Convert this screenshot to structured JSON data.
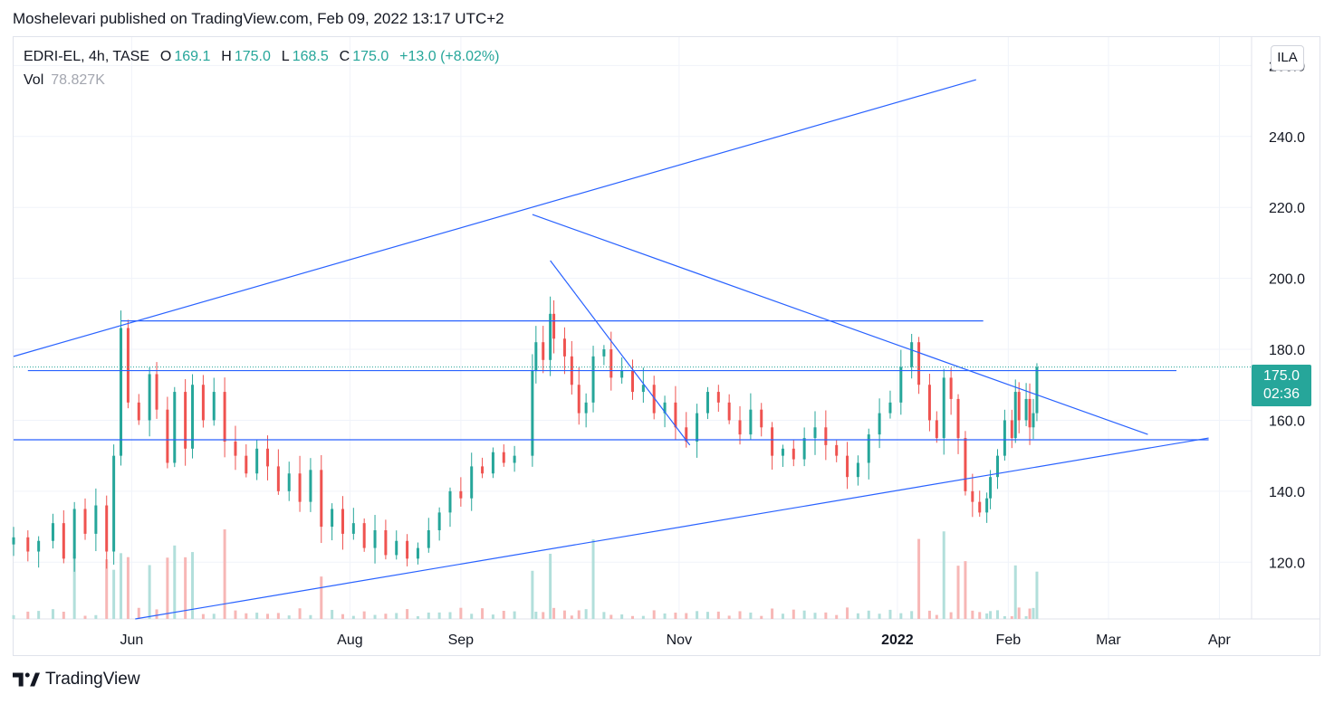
{
  "header": {
    "publish_line": "Moshelevari published on TradingView.com, Feb 09, 2022 13:17 UTC+2"
  },
  "legend": {
    "symbol": "EDRI-EL, 4h, TASE",
    "o_label": "O",
    "o_value": "169.1",
    "h_label": "H",
    "h_value": "175.0",
    "l_label": "L",
    "l_value": "168.5",
    "c_label": "C",
    "c_value": "175.0",
    "change": "+13.0 (+8.02%)",
    "vol_label": "Vol",
    "vol_value": "78.827K"
  },
  "currency_button": "ILA",
  "price_tag": {
    "price": "175.0",
    "countdown": "02:36"
  },
  "footer": {
    "brand": "TradingView",
    "logo_icon": "tradingview-logo-icon"
  },
  "colors": {
    "up": "#26a69a",
    "down": "#ef5350",
    "drawing": "#2962ff",
    "vol_up": "#b2dfdb",
    "vol_down": "#f7b7b6"
  },
  "chart_data": {
    "type": "candlestick",
    "symbol": "EDRI-EL",
    "interval": "4h",
    "exchange": "TASE",
    "y_axis": {
      "side": "right",
      "ticks": [
        120,
        140,
        160,
        180,
        200,
        220,
        240,
        260
      ],
      "labels": [
        "120.0",
        "140.0",
        "160.0",
        "180.0",
        "200.0",
        "220.0",
        "240.0",
        "260.0"
      ],
      "ylim": [
        104,
        268
      ]
    },
    "x_axis": {
      "labels": [
        "Jun",
        "Aug",
        "Sep",
        "Nov",
        "2022",
        "Feb",
        "Mar",
        "Apr"
      ],
      "label_dates": [
        "2021-06-01",
        "2021-08-01",
        "2021-09-01",
        "2021-11-01",
        "2022-01-01",
        "2022-02-01",
        "2022-03-01",
        "2022-04-01"
      ],
      "xlim": [
        "2021-04-29",
        "2022-04-10"
      ]
    },
    "current_price": 175.0,
    "closes": [
      [
        "2021-04-29",
        127
      ],
      [
        "2021-05-03",
        123
      ],
      [
        "2021-05-06",
        126
      ],
      [
        "2021-05-10",
        131
      ],
      [
        "2021-05-13",
        121
      ],
      [
        "2021-05-16",
        135
      ],
      [
        "2021-05-19",
        128
      ],
      [
        "2021-05-22",
        136
      ],
      [
        "2021-05-25",
        123
      ],
      [
        "2021-05-27",
        150
      ],
      [
        "2021-05-29",
        186
      ],
      [
        "2021-05-31",
        165
      ],
      [
        "2021-06-03",
        160
      ],
      [
        "2021-06-06",
        173
      ],
      [
        "2021-06-08",
        163
      ],
      [
        "2021-06-11",
        148
      ],
      [
        "2021-06-13",
        168
      ],
      [
        "2021-06-16",
        152
      ],
      [
        "2021-06-18",
        170
      ],
      [
        "2021-06-21",
        160
      ],
      [
        "2021-06-24",
        168
      ],
      [
        "2021-06-27",
        154
      ],
      [
        "2021-06-30",
        150
      ],
      [
        "2021-07-03",
        145
      ],
      [
        "2021-07-06",
        152
      ],
      [
        "2021-07-09",
        147
      ],
      [
        "2021-07-12",
        140
      ],
      [
        "2021-07-15",
        145
      ],
      [
        "2021-07-18",
        137
      ],
      [
        "2021-07-21",
        146
      ],
      [
        "2021-07-24",
        130
      ],
      [
        "2021-07-27",
        135
      ],
      [
        "2021-07-30",
        128
      ],
      [
        "2021-08-02",
        131
      ],
      [
        "2021-08-05",
        124
      ],
      [
        "2021-08-08",
        129
      ],
      [
        "2021-08-11",
        122
      ],
      [
        "2021-08-14",
        126
      ],
      [
        "2021-08-17",
        121
      ],
      [
        "2021-08-20",
        124
      ],
      [
        "2021-08-23",
        129
      ],
      [
        "2021-08-26",
        134
      ],
      [
        "2021-08-29",
        140
      ],
      [
        "2021-09-01",
        138
      ],
      [
        "2021-09-04",
        147
      ],
      [
        "2021-09-07",
        145
      ],
      [
        "2021-09-10",
        151
      ],
      [
        "2021-09-13",
        148
      ],
      [
        "2021-09-16",
        150
      ],
      [
        "2021-09-21",
        174
      ],
      [
        "2021-09-22",
        182
      ],
      [
        "2021-09-24",
        177
      ],
      [
        "2021-09-26",
        190
      ],
      [
        "2021-09-27",
        183
      ],
      [
        "2021-09-30",
        178
      ],
      [
        "2021-10-02",
        170
      ],
      [
        "2021-10-04",
        162
      ],
      [
        "2021-10-06",
        165
      ],
      [
        "2021-10-08",
        178
      ],
      [
        "2021-10-11",
        180
      ],
      [
        "2021-10-13",
        172
      ],
      [
        "2021-10-16",
        174
      ],
      [
        "2021-10-19",
        168
      ],
      [
        "2021-10-22",
        170
      ],
      [
        "2021-10-25",
        162
      ],
      [
        "2021-10-28",
        165
      ],
      [
        "2021-10-31",
        158
      ],
      [
        "2021-11-03",
        154
      ],
      [
        "2021-11-06",
        162
      ],
      [
        "2021-11-09",
        168
      ],
      [
        "2021-11-12",
        165
      ],
      [
        "2021-11-15",
        160
      ],
      [
        "2021-11-18",
        156
      ],
      [
        "2021-11-21",
        163
      ],
      [
        "2021-11-24",
        158
      ],
      [
        "2021-11-27",
        150
      ],
      [
        "2021-11-30",
        152
      ],
      [
        "2021-12-03",
        149
      ],
      [
        "2021-12-06",
        155
      ],
      [
        "2021-12-09",
        158
      ],
      [
        "2021-12-12",
        153
      ],
      [
        "2021-12-15",
        150
      ],
      [
        "2021-12-18",
        144
      ],
      [
        "2021-12-21",
        148
      ],
      [
        "2021-12-24",
        156
      ],
      [
        "2021-12-27",
        162
      ],
      [
        "2021-12-30",
        165
      ],
      [
        "2022-01-02",
        175
      ],
      [
        "2022-01-05",
        182
      ],
      [
        "2022-01-07",
        170
      ],
      [
        "2022-01-10",
        160
      ],
      [
        "2022-01-12",
        155
      ],
      [
        "2022-01-14",
        172
      ],
      [
        "2022-01-16",
        166
      ],
      [
        "2022-01-18",
        155
      ],
      [
        "2022-01-20",
        140
      ],
      [
        "2022-01-22",
        137
      ],
      [
        "2022-01-24",
        134
      ],
      [
        "2022-01-26",
        138
      ],
      [
        "2022-01-27",
        144
      ],
      [
        "2022-01-29",
        150
      ],
      [
        "2022-01-31",
        160
      ],
      [
        "2022-02-02",
        155
      ],
      [
        "2022-02-03",
        168
      ],
      [
        "2022-02-04",
        160
      ],
      [
        "2022-02-06",
        166
      ],
      [
        "2022-02-07",
        158
      ],
      [
        "2022-02-08",
        162
      ],
      [
        "2022-02-09",
        175
      ]
    ],
    "drawings": [
      {
        "type": "trendline",
        "from": [
          "2021-04-29",
          178
        ],
        "to": [
          "2022-01-23",
          256
        ]
      },
      {
        "type": "trendline",
        "from": [
          "2021-06-02",
          104
        ],
        "to": [
          "2022-03-29",
          155
        ]
      },
      {
        "type": "trendline",
        "from": [
          "2021-09-21",
          218
        ],
        "to": [
          "2022-03-12",
          156
        ]
      },
      {
        "type": "trendline",
        "from": [
          "2021-09-26",
          205
        ],
        "to": [
          "2021-11-04",
          153
        ]
      },
      {
        "type": "horizontal-segment",
        "y": 188,
        "from": "2021-05-29",
        "to": "2022-01-25"
      },
      {
        "type": "horizontal-segment",
        "y": 174,
        "from": "2021-05-03",
        "to": "2022-03-20"
      },
      {
        "type": "horizontal-segment",
        "y": 154.5,
        "from": "2021-04-29",
        "to": "2022-03-29"
      }
    ]
  }
}
